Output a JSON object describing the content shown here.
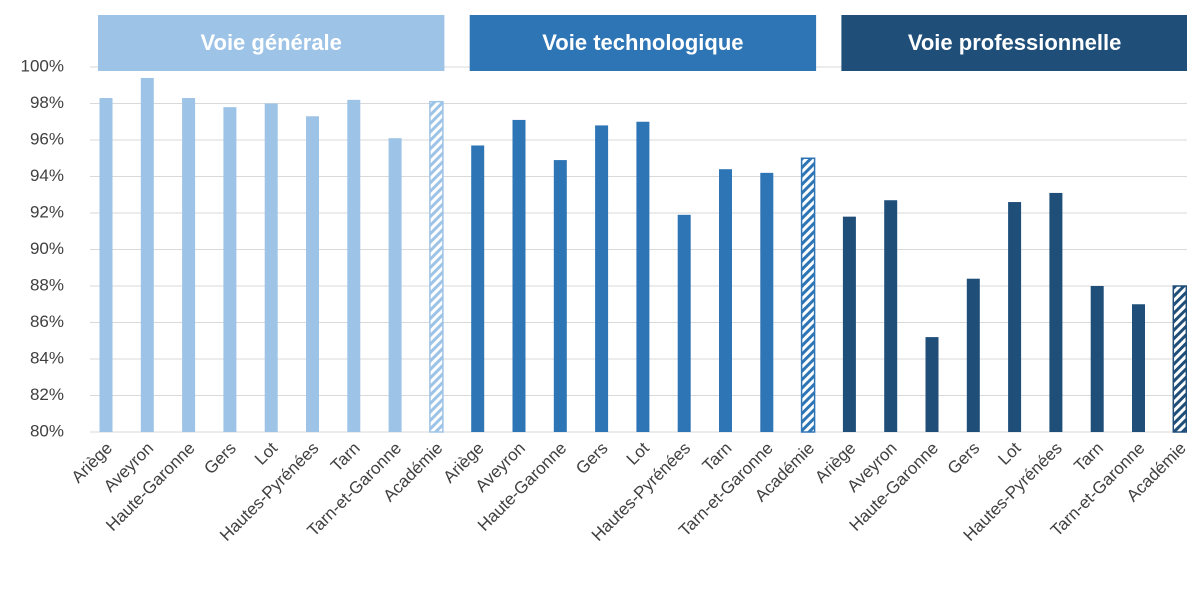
{
  "chart_data": {
    "type": "bar",
    "ylim": [
      80,
      100
    ],
    "yticks": [
      {
        "value": 80,
        "label": "80%"
      },
      {
        "value": 82,
        "label": "82%"
      },
      {
        "value": 84,
        "label": "84%"
      },
      {
        "value": 86,
        "label": "86%"
      },
      {
        "value": 88,
        "label": "88%"
      },
      {
        "value": 90,
        "label": "90%"
      },
      {
        "value": 92,
        "label": "92%"
      },
      {
        "value": 94,
        "label": "94%"
      },
      {
        "value": 96,
        "label": "96%"
      },
      {
        "value": 98,
        "label": "98%"
      },
      {
        "value": 100,
        "label": "100%"
      }
    ],
    "grid": true,
    "hatched_last": true,
    "groups": [
      {
        "name": "Voie générale",
        "color": "#9dc3e6",
        "categories": [
          "Ariège",
          "Aveyron",
          "Haute-Garonne",
          "Gers",
          "Lot",
          "Hautes-Pyrénées",
          "Tarn",
          "Tarn-et-Garonne",
          "Académie"
        ],
        "values": [
          98.3,
          99.4,
          98.3,
          97.8,
          98.0,
          97.3,
          98.2,
          96.1,
          98.1
        ]
      },
      {
        "name": "Voie technologique",
        "color": "#2e75b6",
        "categories": [
          "Ariège",
          "Aveyron",
          "Haute-Garonne",
          "Gers",
          "Lot",
          "Hautes-Pyrénées",
          "Tarn",
          "Tarn-et-Garonne",
          "Académie"
        ],
        "values": [
          95.7,
          97.1,
          94.9,
          96.8,
          97.0,
          91.9,
          94.4,
          94.2,
          95.0
        ]
      },
      {
        "name": "Voie professionnelle",
        "color": "#1f4e79",
        "categories": [
          "Ariège",
          "Aveyron",
          "Haute-Garonne",
          "Gers",
          "Lot",
          "Hautes-Pyrénées",
          "Tarn",
          "Tarn-et-Garonne",
          "Académie"
        ],
        "values": [
          91.8,
          92.7,
          85.2,
          88.4,
          92.6,
          93.1,
          88.0,
          87.0,
          88.0
        ]
      }
    ]
  }
}
